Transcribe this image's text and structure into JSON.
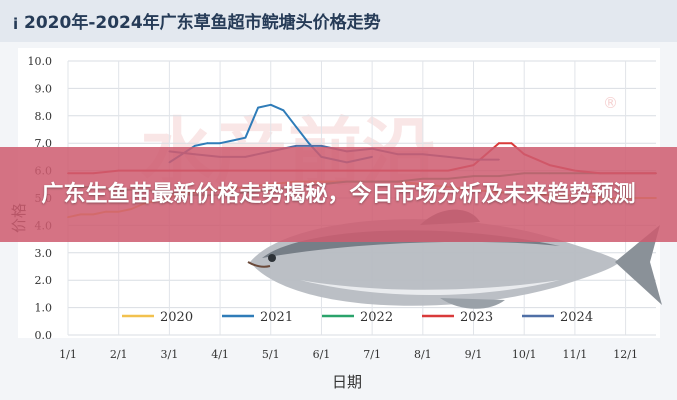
{
  "page": {
    "banner_text": "广东生鱼苗最新价格走势揭秘，今日市场分析及未来趋势预测",
    "watermark": "水产前沿",
    "registered_mark": "®"
  },
  "chart_data": {
    "type": "line",
    "title": "2020年-2024年广东草鱼超市鲩塘头价格走势",
    "title_prefix_icon": "info-icon",
    "xlabel": "日期",
    "ylabel": "价格",
    "ylim": [
      0,
      10
    ],
    "yticks": [
      "0.0",
      "1.0",
      "2.0",
      "3.0",
      "4.0",
      "5.0",
      "6.0",
      "7.0",
      "8.0",
      "9.0",
      "10.0"
    ],
    "xlim": [
      1,
      12.6
    ],
    "xticks": [
      {
        "v": 1,
        "label": "1/1"
      },
      {
        "v": 2,
        "label": "2/1"
      },
      {
        "v": 3,
        "label": "3/1"
      },
      {
        "v": 4,
        "label": "4/1"
      },
      {
        "v": 5,
        "label": "5/1"
      },
      {
        "v": 6,
        "label": "6/1"
      },
      {
        "v": 7,
        "label": "7/1"
      },
      {
        "v": 8,
        "label": "8/1"
      },
      {
        "v": 9,
        "label": "9/1"
      },
      {
        "v": 10,
        "label": "10/1"
      },
      {
        "v": 11,
        "label": "11/1"
      },
      {
        "v": 12,
        "label": "12/1"
      }
    ],
    "grid": true,
    "legend": "bottom",
    "series": [
      {
        "name": "2020",
        "color": "#f2c14e",
        "x": [
          1,
          1.25,
          1.5,
          1.75,
          2,
          2.25,
          2.5,
          2.75,
          3,
          3.25,
          3.5,
          3.75,
          4,
          4.5,
          5,
          5.5,
          6,
          6.5,
          7,
          7.5,
          8,
          8.5,
          9,
          9.5,
          10,
          10.5,
          11,
          11.5,
          12,
          12.6
        ],
        "y": [
          4.3,
          4.4,
          4.4,
          4.5,
          4.5,
          4.6,
          4.8,
          4.9,
          5.0,
          5.2,
          5.2,
          5.3,
          5.3,
          5.4,
          5.5,
          5.6,
          5.6,
          5.6,
          5.6,
          5.6,
          5.5,
          5.4,
          5.3,
          5.2,
          5.2,
          5.1,
          5.1,
          5.0,
          5.0,
          5.0
        ]
      },
      {
        "name": "2021",
        "color": "#2f7cb8",
        "x": [
          3,
          3.25,
          3.5,
          3.75,
          4,
          4.25,
          4.5,
          4.75,
          5,
          5.25,
          5.5,
          5.75,
          6,
          6.25,
          6.5,
          6.75,
          7
        ],
        "y": [
          6.3,
          6.6,
          6.9,
          7.0,
          7.0,
          7.1,
          7.2,
          8.3,
          8.4,
          8.2,
          7.6,
          7.0,
          6.5,
          6.4,
          6.3,
          6.4,
          6.5
        ]
      },
      {
        "name": "2022",
        "color": "#2aa36b",
        "x": [
          1,
          1.5,
          2,
          2.5,
          3,
          3.5,
          4,
          4.5,
          5,
          5.5,
          6,
          6.5,
          7,
          7.5,
          8,
          8.5,
          9,
          9.5,
          10,
          10.5,
          11,
          11.5,
          12,
          12.6
        ],
        "y": [
          5.4,
          5.4,
          5.3,
          5.3,
          5.2,
          5.1,
          5.1,
          5.2,
          5.3,
          5.4,
          5.5,
          5.6,
          5.6,
          5.6,
          5.7,
          5.7,
          5.8,
          5.8,
          5.9,
          5.9,
          5.9,
          5.9,
          5.9,
          5.9
        ]
      },
      {
        "name": "2023",
        "color": "#d93a3a",
        "x": [
          1,
          1.5,
          2,
          2.5,
          3,
          3.5,
          4,
          4.5,
          5,
          5.5,
          6,
          6.5,
          7,
          7.5,
          8,
          8.5,
          9,
          9.25,
          9.5,
          9.75,
          10,
          10.25,
          10.5,
          11,
          11.5,
          12,
          12.6
        ],
        "y": [
          5.9,
          5.9,
          6.0,
          6.0,
          6.0,
          6.0,
          6.0,
          6.0,
          6.0,
          6.0,
          6.0,
          6.0,
          6.0,
          6.0,
          6.0,
          6.0,
          6.2,
          6.6,
          7.0,
          7.0,
          6.6,
          6.4,
          6.2,
          6.0,
          5.9,
          5.9,
          5.9
        ]
      },
      {
        "name": "2024",
        "color": "#4f6fa6",
        "x": [
          3,
          3.5,
          4,
          4.5,
          5,
          5.5,
          6,
          6.5,
          7,
          7.5,
          8,
          8.5,
          9,
          9.5
        ],
        "y": [
          6.7,
          6.6,
          6.5,
          6.5,
          6.7,
          6.9,
          6.9,
          6.7,
          6.8,
          6.6,
          6.6,
          6.5,
          6.4,
          6.4
        ]
      }
    ]
  }
}
